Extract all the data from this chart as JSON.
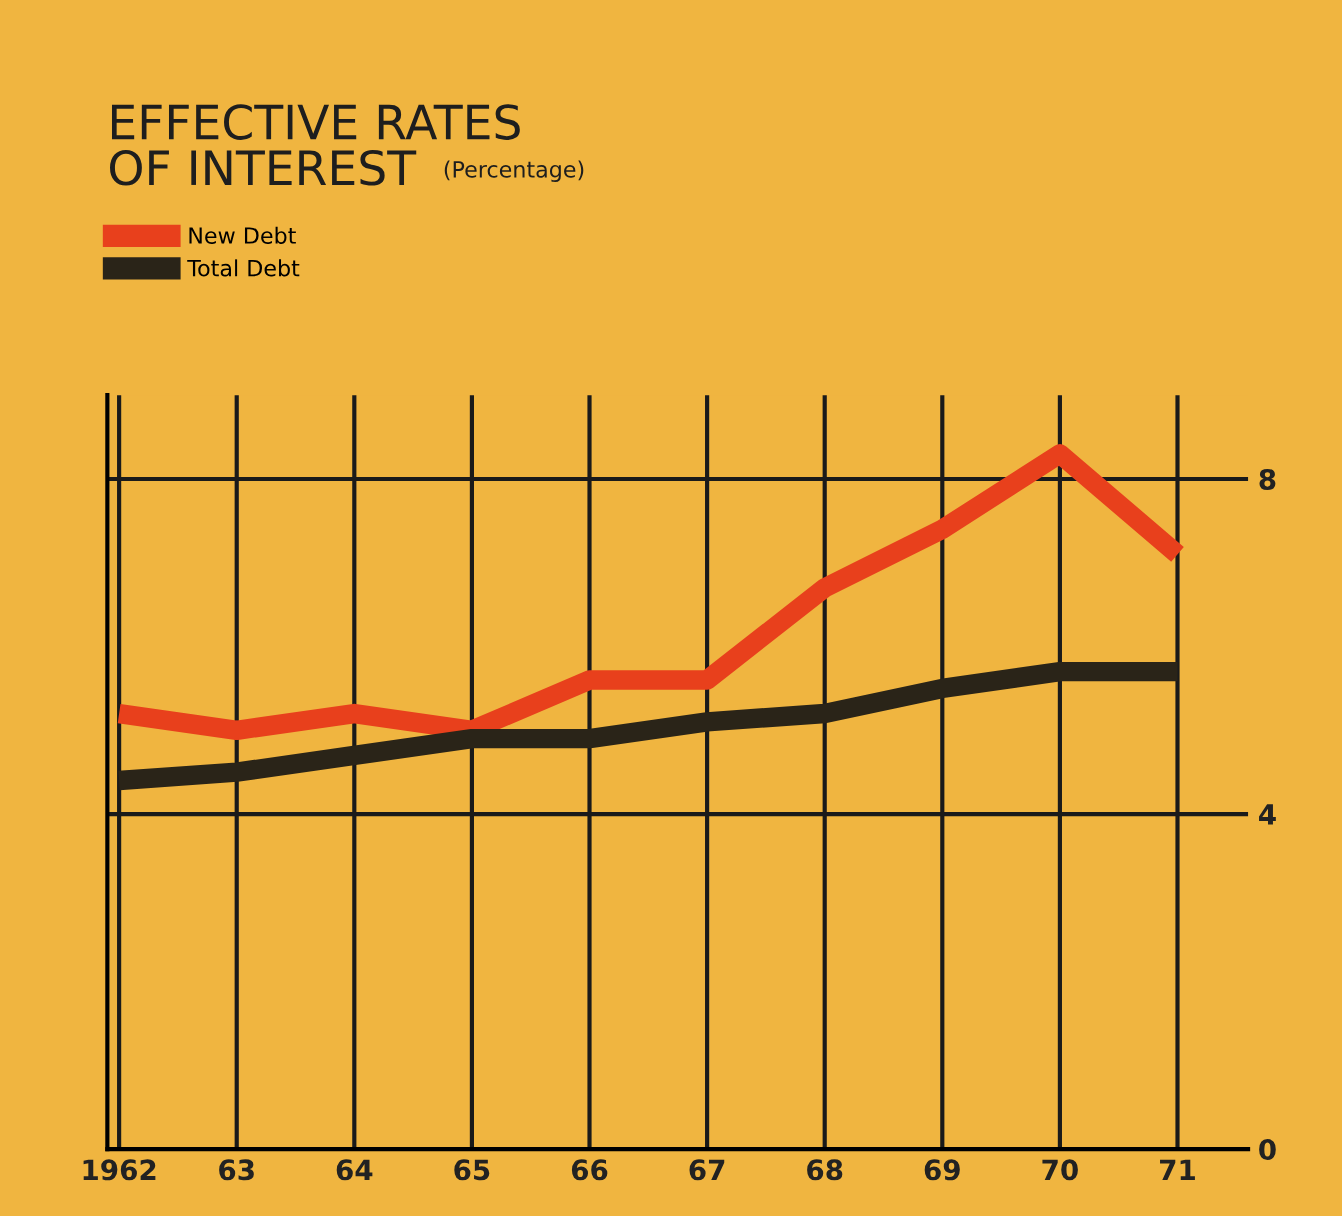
{
  "chart_data": {
    "type": "line",
    "title": "EFFECTIVE RATES\nOF INTEREST",
    "subtitle": "(Percentage)",
    "categories": [
      "1962",
      "63",
      "64",
      "65",
      "66",
      "67",
      "68",
      "69",
      "70",
      "71"
    ],
    "series": [
      {
        "name": "New Debt",
        "color": "#e8401c",
        "values": [
          5.2,
          5.0,
          5.2,
          5.0,
          5.6,
          5.6,
          6.7,
          7.4,
          8.3,
          7.1
        ]
      },
      {
        "name": "Total Debt",
        "color": "#2a2418",
        "values": [
          4.4,
          4.5,
          4.7,
          4.9,
          4.9,
          5.1,
          5.2,
          5.5,
          5.7,
          5.7
        ]
      }
    ],
    "ylim": [
      0,
      9
    ],
    "yticks": [
      0,
      4,
      8
    ],
    "grid": true,
    "legend": "top left",
    "marker": "none",
    "line_style": "solid"
  }
}
